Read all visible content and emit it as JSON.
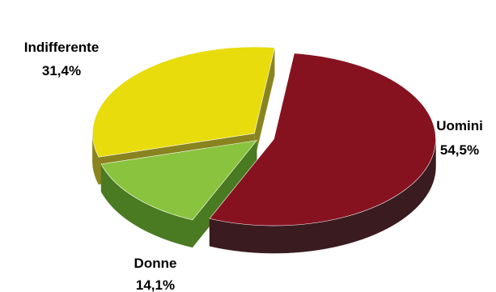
{
  "chart_data": {
    "type": "pie",
    "style": "3d-exploded",
    "legend": "none",
    "slices": [
      {
        "label": "Uomini",
        "value_label": "54,5%",
        "value": 54.5,
        "color": "#861220",
        "side_color": "#3a1b1f"
      },
      {
        "label": "Donne",
        "value_label": "14,1%",
        "value": 14.1,
        "color": "#8ac43f",
        "side_color": "#4a7a22"
      },
      {
        "label": "Indifferente",
        "value_label": "31,4%",
        "value": 31.4,
        "color": "#e8dc0c",
        "side_color": "#8a8420"
      }
    ]
  }
}
